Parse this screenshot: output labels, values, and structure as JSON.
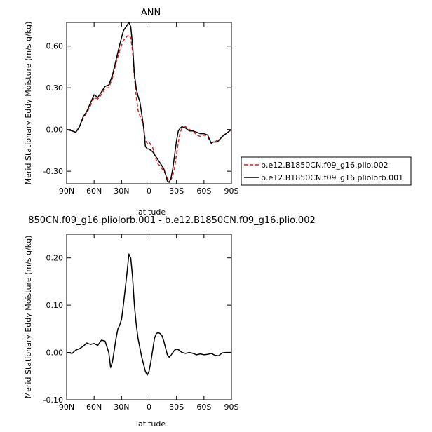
{
  "chart_data": [
    {
      "type": "line",
      "title": "ANN",
      "xlabel": "latitude",
      "ylabel": "Merid Stationary Eddy Moisture (m/s g/kg)",
      "xlim": [
        90,
        -90
      ],
      "ylim": [
        -0.39,
        0.77
      ],
      "x_ticks": [
        90,
        60,
        30,
        0,
        -30,
        -60,
        -90
      ],
      "x_tick_labels": [
        "90N",
        "60N",
        "30N",
        "0",
        "30S",
        "60S",
        "90S"
      ],
      "y_ticks": [
        0.6,
        0.3,
        0.0,
        -0.3
      ],
      "y_tick_labels": [
        "0.60",
        "0.30",
        "0.00",
        "-0.30"
      ],
      "legend_position": "right",
      "series": [
        {
          "name": "b.e12.B1850CN.f09_g16.plio.002",
          "color": "#d62020",
          "style": "dashed",
          "x": [
            90,
            84,
            80,
            76,
            72,
            68,
            64,
            60,
            56,
            52,
            48,
            44,
            40,
            36,
            32,
            28,
            24,
            22,
            20,
            18,
            16,
            14,
            12,
            10,
            8,
            6,
            4,
            2,
            0,
            -2,
            -4,
            -6,
            -8,
            -10,
            -12,
            -14,
            -16,
            -18,
            -20,
            -22,
            -24,
            -26,
            -28,
            -30,
            -32,
            -34,
            -36,
            -40,
            -44,
            -48,
            -52,
            -56,
            -60,
            -64,
            -66,
            -68,
            -70,
            -72,
            -74,
            -76,
            -80,
            -84,
            -90
          ],
          "y": [
            0.0,
            -0.01,
            -0.02,
            0.02,
            0.08,
            0.12,
            0.17,
            0.23,
            0.22,
            0.25,
            0.3,
            0.3,
            0.37,
            0.48,
            0.57,
            0.64,
            0.67,
            0.68,
            0.66,
            0.56,
            0.38,
            0.24,
            0.14,
            0.1,
            0.07,
            0.02,
            -0.08,
            -0.1,
            -0.09,
            -0.11,
            -0.13,
            -0.18,
            -0.22,
            -0.25,
            -0.26,
            -0.28,
            -0.3,
            -0.32,
            -0.35,
            -0.37,
            -0.36,
            -0.33,
            -0.27,
            -0.18,
            -0.09,
            -0.02,
            0.01,
            0.02,
            0.0,
            -0.01,
            -0.04,
            -0.05,
            -0.04,
            -0.05,
            -0.08,
            -0.1,
            -0.09,
            -0.09,
            -0.08,
            -0.08,
            -0.05,
            -0.03,
            0.0
          ]
        },
        {
          "name": "b.e12.B1850CN.f09_g16.pliolorb.001",
          "color": "#000000",
          "style": "solid",
          "x": [
            90,
            84,
            80,
            76,
            72,
            68,
            64,
            60,
            56,
            52,
            48,
            44,
            40,
            36,
            32,
            28,
            24,
            22,
            20,
            18,
            16,
            14,
            12,
            10,
            8,
            6,
            4,
            2,
            0,
            -2,
            -4,
            -6,
            -8,
            -10,
            -12,
            -14,
            -16,
            -18,
            -20,
            -22,
            -24,
            -26,
            -28,
            -30,
            -32,
            -34,
            -36,
            -40,
            -44,
            -48,
            -52,
            -56,
            -60,
            -64,
            -66,
            -68,
            -70,
            -72,
            -74,
            -76,
            -80,
            -84,
            -90
          ],
          "y": [
            0.0,
            -0.01,
            -0.02,
            0.02,
            0.09,
            0.13,
            0.19,
            0.25,
            0.23,
            0.27,
            0.31,
            0.32,
            0.39,
            0.5,
            0.61,
            0.71,
            0.75,
            0.77,
            0.74,
            0.61,
            0.4,
            0.3,
            0.24,
            0.2,
            0.11,
            0.02,
            -0.12,
            -0.14,
            -0.14,
            -0.15,
            -0.16,
            -0.18,
            -0.2,
            -0.22,
            -0.24,
            -0.26,
            -0.28,
            -0.32,
            -0.37,
            -0.38,
            -0.35,
            -0.28,
            -0.18,
            -0.08,
            -0.01,
            0.01,
            0.02,
            0.01,
            -0.01,
            -0.01,
            -0.02,
            -0.03,
            -0.03,
            -0.04,
            -0.07,
            -0.1,
            -0.09,
            -0.09,
            -0.09,
            -0.08,
            -0.05,
            -0.03,
            0.0
          ]
        }
      ]
    },
    {
      "type": "line",
      "title": "850CN.f09_g16.pliolorb.001 - b.e12.B1850CN.f09_g16.plio.002",
      "xlabel": "latitude",
      "ylabel": "Merid Stationary Eddy Moisture (m/s g/kg)",
      "xlim": [
        90,
        -90
      ],
      "ylim": [
        -0.1,
        0.25
      ],
      "x_ticks": [
        90,
        60,
        30,
        0,
        -30,
        -60,
        -90
      ],
      "x_tick_labels": [
        "90N",
        "60N",
        "30N",
        "0",
        "30S",
        "60S",
        "90S"
      ],
      "y_ticks": [
        0.2,
        0.1,
        0.0,
        -0.1
      ],
      "y_tick_labels": [
        "0.20",
        "0.10",
        "0.00",
        "-0.10"
      ],
      "series": [
        {
          "color": "#000000",
          "style": "solid",
          "x": [
            90,
            84,
            80,
            76,
            72,
            68,
            64,
            60,
            56,
            52,
            48,
            44,
            42,
            40,
            38,
            36,
            34,
            32,
            30,
            28,
            26,
            24,
            22,
            20,
            18,
            16,
            14,
            12,
            10,
            8,
            6,
            4,
            2,
            0,
            -2,
            -4,
            -6,
            -8,
            -10,
            -12,
            -14,
            -16,
            -18,
            -20,
            -22,
            -24,
            -26,
            -28,
            -30,
            -32,
            -34,
            -36,
            -40,
            -44,
            -48,
            -52,
            -56,
            -60,
            -64,
            -68,
            -72,
            -76,
            -80,
            -84,
            -90
          ],
          "y": [
            0.0,
            -0.002,
            0.005,
            0.008,
            0.013,
            0.02,
            0.017,
            0.019,
            0.015,
            0.026,
            0.024,
            0.0,
            -0.032,
            -0.02,
            0.005,
            0.03,
            0.05,
            0.058,
            0.07,
            0.1,
            0.135,
            0.17,
            0.208,
            0.2,
            0.16,
            0.1,
            0.06,
            0.03,
            0.01,
            -0.01,
            -0.025,
            -0.04,
            -0.048,
            -0.04,
            -0.02,
            0.005,
            0.03,
            0.04,
            0.042,
            0.04,
            0.036,
            0.025,
            0.01,
            -0.005,
            -0.01,
            -0.006,
            0.0,
            0.005,
            0.007,
            0.006,
            0.003,
            0.0,
            -0.002,
            0.0,
            -0.002,
            -0.005,
            -0.003,
            -0.005,
            -0.004,
            -0.002,
            -0.006,
            -0.007,
            -0.001,
            0.0,
            0.0
          ]
        }
      ]
    }
  ]
}
